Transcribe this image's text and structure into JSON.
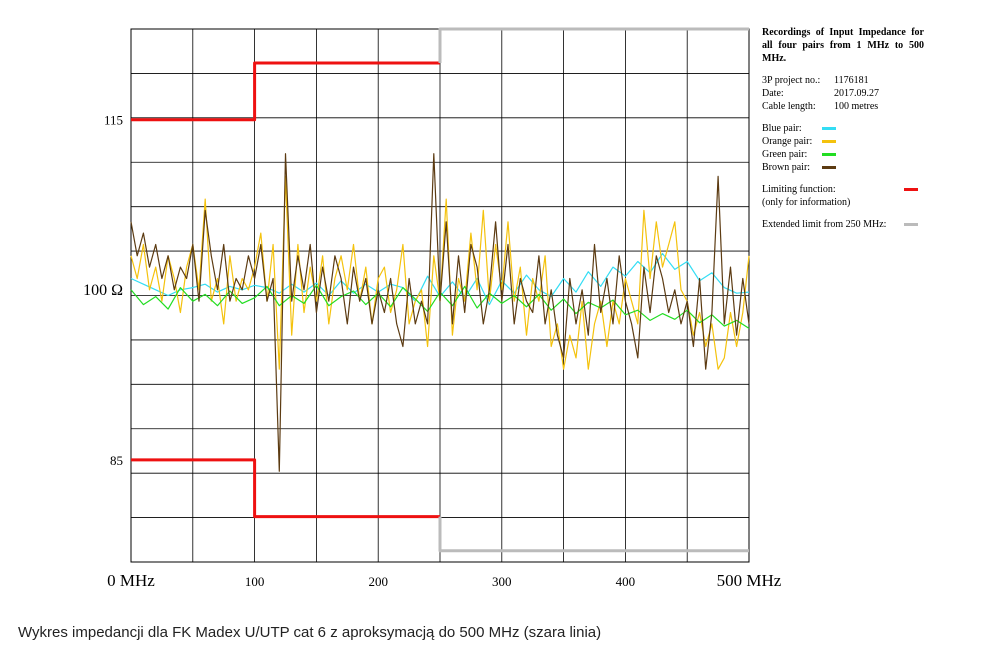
{
  "chart_data": {
    "type": "line",
    "title": "Recordings of Input Impedance for all four pairs from 1 MHz to 500 MHz.",
    "xlabel": "",
    "ylabel": "",
    "xlim": [
      0,
      500
    ],
    "ylim": [
      76,
      123
    ],
    "grid": true,
    "x_ticks": [
      {
        "value": 0,
        "label": "0 MHz"
      },
      {
        "value": 100,
        "label": "100"
      },
      {
        "value": 200,
        "label": "200"
      },
      {
        "value": 300,
        "label": "300"
      },
      {
        "value": 400,
        "label": "400"
      },
      {
        "value": 500,
        "label": "500 MHz"
      }
    ],
    "y_ticks": [
      {
        "value": 115,
        "label": "115"
      },
      {
        "value": 100,
        "label": "100 Ω"
      },
      {
        "value": 85,
        "label": "85"
      }
    ],
    "series": [
      {
        "name": "Blue pair",
        "color": "#33ddf4",
        "x": [
          0,
          10,
          20,
          30,
          40,
          50,
          60,
          70,
          80,
          90,
          100,
          110,
          120,
          130,
          140,
          150,
          160,
          170,
          180,
          190,
          200,
          210,
          220,
          230,
          240,
          250,
          260,
          270,
          280,
          290,
          300,
          310,
          320,
          330,
          340,
          350,
          360,
          370,
          380,
          390,
          400,
          410,
          420,
          430,
          440,
          450,
          460,
          470,
          480,
          490,
          500
        ],
        "values": [
          101,
          100.5,
          100,
          99.5,
          100,
          100.2,
          100.5,
          99.8,
          100.3,
          100,
          100.4,
          100.2,
          99.7,
          100.5,
          99.8,
          100.6,
          99.5,
          100.8,
          99.7,
          100.5,
          99.8,
          100.5,
          100.2,
          99,
          101.2,
          99.4,
          100.7,
          99.3,
          101,
          98.7,
          100.8,
          99.7,
          101.3,
          100,
          99.4,
          101,
          99.8,
          101.6,
          100.3,
          102,
          101.2,
          102.5,
          101.5,
          103.2,
          101.8,
          102.5,
          100.8,
          101.5,
          100.2,
          99.7,
          99.8
        ]
      },
      {
        "name": "Orange pair",
        "color": "#f4c20d",
        "x": [
          0,
          5,
          10,
          15,
          20,
          25,
          30,
          35,
          40,
          45,
          50,
          55,
          60,
          65,
          70,
          75,
          80,
          85,
          90,
          95,
          100,
          105,
          110,
          115,
          120,
          125,
          130,
          135,
          140,
          145,
          150,
          155,
          160,
          165,
          170,
          175,
          180,
          185,
          190,
          195,
          200,
          205,
          210,
          215,
          220,
          225,
          230,
          235,
          240,
          245,
          250,
          255,
          260,
          265,
          270,
          275,
          280,
          285,
          290,
          295,
          300,
          305,
          310,
          315,
          320,
          325,
          330,
          335,
          340,
          345,
          350,
          355,
          360,
          365,
          370,
          375,
          380,
          385,
          390,
          395,
          400,
          405,
          410,
          415,
          420,
          425,
          430,
          435,
          440,
          445,
          450,
          455,
          460,
          465,
          470,
          475,
          480,
          485,
          490,
          495,
          500
        ],
        "values": [
          103,
          101,
          104,
          100,
          102,
          99,
          103,
          101,
          98,
          102,
          104,
          100,
          108,
          99,
          101,
          97,
          103,
          99,
          101,
          100,
          102,
          105,
          99,
          104,
          93,
          110,
          96,
          104,
          98,
          102,
          99,
          103,
          97,
          101,
          103,
          100,
          104,
          99,
          102,
          97,
          101,
          102,
          98,
          100,
          104,
          97,
          99,
          100,
          95,
          103,
          99,
          108,
          96,
          101,
          99,
          105,
          100,
          107,
          99,
          104,
          100,
          106,
          99,
          102,
          96,
          101,
          99,
          103,
          95,
          97,
          93,
          96,
          94,
          99,
          93,
          97,
          99,
          95,
          99,
          97,
          101,
          99,
          97,
          107,
          101,
          106,
          102,
          104,
          106,
          100,
          99,
          96,
          98,
          95,
          97,
          93,
          94,
          98,
          95,
          98,
          103
        ]
      },
      {
        "name": "Green pair",
        "color": "#22dd22",
        "x": [
          0,
          10,
          20,
          30,
          40,
          50,
          60,
          70,
          80,
          90,
          100,
          110,
          120,
          130,
          140,
          150,
          160,
          170,
          180,
          190,
          200,
          210,
          220,
          230,
          240,
          250,
          260,
          270,
          280,
          290,
          300,
          310,
          320,
          330,
          340,
          350,
          360,
          370,
          380,
          390,
          400,
          410,
          420,
          430,
          440,
          450,
          460,
          470,
          480,
          490,
          500
        ],
        "values": [
          100,
          98.7,
          99.4,
          98.3,
          100.2,
          99,
          99.6,
          98.6,
          99.9,
          98.8,
          99.3,
          100.3,
          98.6,
          99.5,
          98.8,
          100.4,
          98.6,
          99.4,
          99.9,
          98.7,
          99.7,
          98.5,
          100.2,
          99.2,
          98.1,
          99.8,
          98.6,
          100.3,
          98.4,
          99.7,
          98.8,
          99.5,
          98.5,
          99.6,
          98.2,
          99.2,
          97.9,
          98.9,
          98.4,
          99.1,
          97.8,
          98.2,
          97.3,
          97.9,
          97.4,
          98.2,
          97.1,
          97.8,
          96.8,
          97.3,
          96.6
        ]
      },
      {
        "name": "Brown pair",
        "color": "#5c3b12",
        "x": [
          0,
          5,
          10,
          15,
          20,
          25,
          30,
          35,
          40,
          45,
          50,
          55,
          60,
          65,
          70,
          75,
          80,
          85,
          90,
          95,
          100,
          105,
          110,
          115,
          120,
          125,
          130,
          135,
          140,
          145,
          150,
          155,
          160,
          165,
          170,
          175,
          180,
          185,
          190,
          195,
          200,
          205,
          210,
          215,
          220,
          225,
          230,
          235,
          240,
          245,
          250,
          255,
          260,
          265,
          270,
          275,
          280,
          285,
          290,
          295,
          300,
          305,
          310,
          315,
          320,
          325,
          330,
          335,
          340,
          345,
          350,
          355,
          360,
          365,
          370,
          375,
          380,
          385,
          390,
          395,
          400,
          405,
          410,
          415,
          420,
          425,
          430,
          435,
          440,
          445,
          450,
          455,
          460,
          465,
          470,
          475,
          480,
          485,
          490,
          495,
          500
        ],
        "values": [
          106,
          103,
          105,
          102,
          104,
          101,
          103,
          100,
          102,
          101,
          104,
          99,
          107,
          103,
          100,
          104,
          99,
          101,
          100,
          103,
          101,
          104,
          99,
          101,
          84,
          112,
          99,
          103,
          100,
          104,
          98,
          102,
          99,
          103,
          101,
          97,
          102,
          99,
          101,
          97,
          100,
          98,
          101,
          97,
          95,
          101,
          97,
          99,
          97,
          112,
          99,
          106,
          97,
          103,
          98,
          104,
          102,
          97,
          100,
          106,
          99,
          104,
          97,
          101,
          99,
          98,
          103,
          97,
          100,
          96,
          94,
          101,
          97,
          100,
          96,
          104,
          98,
          101,
          97,
          103,
          99,
          97,
          94,
          102,
          98,
          103,
          101,
          98,
          100,
          97,
          99,
          95,
          101,
          93,
          98,
          110,
          97,
          102,
          96,
          101,
          97
        ]
      },
      {
        "name": "Limiting function",
        "color": "#ee1111",
        "x": [
          0,
          100,
          100,
          250,
          250
        ],
        "values": [
          115,
          115,
          120,
          120,
          null
        ]
      },
      {
        "name": "Limiting function",
        "color": "#ee1111",
        "x": [
          0,
          100,
          100,
          250
        ],
        "values": [
          85,
          85,
          80,
          80
        ]
      },
      {
        "name": "Extended limit from 250 MHz",
        "color": "#bbbbbb",
        "x": [
          250,
          250,
          500
        ],
        "values": [
          120,
          123,
          123
        ]
      },
      {
        "name": "Extended limit from 250 MHz",
        "color": "#bbbbbb",
        "x": [
          250,
          250,
          500
        ],
        "values": [
          80,
          77,
          77
        ]
      }
    ]
  },
  "info": {
    "title": "Recordings of Input Impedance for all four pairs from 1 MHz to 500 MHz.",
    "project_label": "3P project no.:",
    "project_value": "1176181",
    "date_label": "Date:",
    "date_value": "2017.09.27",
    "cable_label": "Cable length:",
    "cable_value": "100 metres"
  },
  "legend": {
    "blue": "Blue pair:",
    "orange": "Orange pair:",
    "green": "Green pair:",
    "brown": "Brown pair:",
    "limit": "Limiting function:",
    "limit_note": "(only for information)",
    "extended": "Extended limit from 250 MHz:",
    "colors": {
      "blue": "#33ddf4",
      "orange": "#f4c20d",
      "green": "#22dd22",
      "brown": "#5c3b12",
      "limit": "#ee1111",
      "extended": "#bbbbbb"
    }
  },
  "caption": "Wykres impedancji dla FK Madex U/UTP cat 6 z aproksymacją do 500 MHz (szara linia)"
}
